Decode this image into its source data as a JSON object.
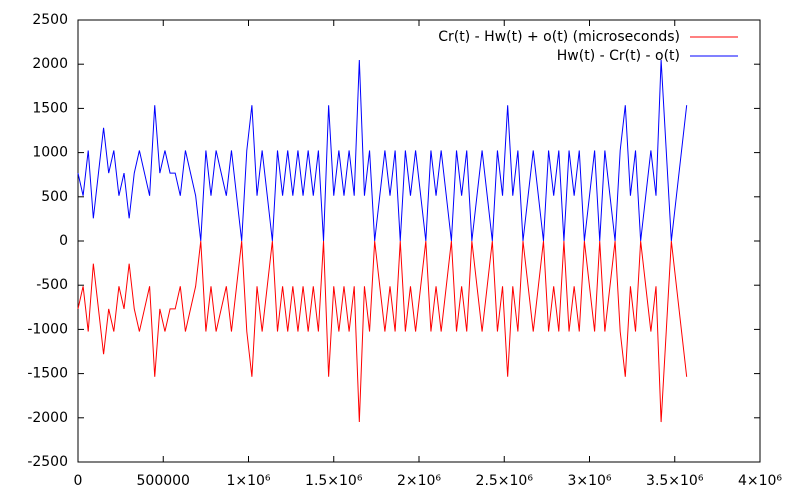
{
  "chart_data": {
    "type": "line",
    "x": [
      0,
      30000,
      60000,
      90000,
      120000,
      150000,
      180000,
      210000,
      240000,
      270000,
      300000,
      330000,
      360000,
      390000,
      420000,
      450000,
      480000,
      510000,
      540000,
      570000,
      600000,
      630000,
      660000,
      690000,
      720000,
      750000,
      780000,
      810000,
      840000,
      870000,
      900000,
      930000,
      960000,
      990000,
      1020000,
      1050000,
      1080000,
      1110000,
      1140000,
      1170000,
      1200000,
      1230000,
      1260000,
      1290000,
      1320000,
      1350000,
      1380000,
      1410000,
      1440000,
      1470000,
      1500000,
      1530000,
      1560000,
      1590000,
      1620000,
      1650000,
      1680000,
      1710000,
      1740000,
      1770000,
      1800000,
      1830000,
      1860000,
      1890000,
      1920000,
      1950000,
      1980000,
      2010000,
      2040000,
      2070000,
      2100000,
      2130000,
      2160000,
      2190000,
      2220000,
      2250000,
      2280000,
      2310000,
      2340000,
      2370000,
      2400000,
      2430000,
      2460000,
      2490000,
      2520000,
      2550000,
      2580000,
      2610000,
      2640000,
      2670000,
      2700000,
      2730000,
      2760000,
      2790000,
      2820000,
      2850000,
      2880000,
      2910000,
      2940000,
      2970000,
      3000000,
      3030000,
      3060000,
      3090000,
      3120000,
      3150000,
      3180000,
      3210000,
      3240000,
      3270000,
      3300000,
      3330000,
      3360000,
      3390000,
      3420000,
      3450000,
      3480000,
      3510000,
      3540000,
      3570000
    ],
    "series": [
      {
        "name": "Cr(t) - Hw(t) + o(t) (microseconds)",
        "color": "#ff0000",
        "values": [
          -768,
          -512,
          -1024,
          -256,
          -768,
          -1280,
          -768,
          -1024,
          -512,
          -768,
          -256,
          -768,
          -1024,
          -768,
          -512,
          -1536,
          -768,
          -1024,
          -768,
          -768,
          -512,
          -1024,
          -768,
          -512,
          0,
          -1024,
          -512,
          -1024,
          -768,
          -512,
          -1024,
          -512,
          0,
          -1024,
          -1536,
          -512,
          -1024,
          -512,
          0,
          -1024,
          -512,
          -1024,
          -512,
          -1024,
          -512,
          -1024,
          -512,
          -1024,
          0,
          -1536,
          -512,
          -1024,
          -512,
          -1024,
          -512,
          -2048,
          -512,
          -1024,
          0,
          -512,
          -1024,
          -512,
          -1024,
          0,
          -1024,
          -512,
          -1024,
          -512,
          0,
          -1024,
          -512,
          -1024,
          -512,
          0,
          -1024,
          -512,
          -1024,
          0,
          -512,
          -1024,
          -512,
          0,
          -1024,
          -512,
          -1536,
          -512,
          -1024,
          0,
          -512,
          -1024,
          -512,
          0,
          -1024,
          -512,
          -1024,
          0,
          -1024,
          -512,
          -1024,
          0,
          -512,
          -1024,
          0,
          -1024,
          -512,
          0,
          -1024,
          -1536,
          -512,
          -1024,
          0,
          -512,
          -1024,
          -512,
          -2048,
          -1024,
          0,
          -512,
          -1024,
          -1536
        ]
      },
      {
        "name": "Hw(t) - Cr(t) - o(t)",
        "color": "#0000ff",
        "values": [
          768,
          512,
          1024,
          256,
          768,
          1280,
          768,
          1024,
          512,
          768,
          256,
          768,
          1024,
          768,
          512,
          1536,
          768,
          1024,
          768,
          768,
          512,
          1024,
          768,
          512,
          0,
          1024,
          512,
          1024,
          768,
          512,
          1024,
          512,
          0,
          1024,
          1536,
          512,
          1024,
          512,
          0,
          1024,
          512,
          1024,
          512,
          1024,
          512,
          1024,
          512,
          1024,
          0,
          1536,
          512,
          1024,
          512,
          1024,
          512,
          2048,
          512,
          1024,
          0,
          512,
          1024,
          512,
          1024,
          0,
          1024,
          512,
          1024,
          512,
          0,
          1024,
          512,
          1024,
          512,
          0,
          1024,
          512,
          1024,
          0,
          512,
          1024,
          512,
          0,
          1024,
          512,
          1536,
          512,
          1024,
          0,
          512,
          1024,
          512,
          0,
          1024,
          512,
          1024,
          0,
          1024,
          512,
          1024,
          0,
          512,
          1024,
          0,
          1024,
          512,
          0,
          1024,
          1536,
          512,
          1024,
          0,
          512,
          1024,
          512,
          2048,
          1024,
          0,
          512,
          1024,
          1536
        ]
      }
    ],
    "xlim": [
      0,
      4000000
    ],
    "xticks": [
      0,
      500000,
      {
        "value": 1000000,
        "label": "1×10⁶"
      },
      {
        "value": 1500000,
        "label": "1.5×10⁶"
      },
      {
        "value": 2000000,
        "label": "2×10⁶"
      },
      {
        "value": 2500000,
        "label": "2.5×10⁶"
      },
      {
        "value": 3000000,
        "label": "3×10⁶"
      },
      {
        "value": 3500000,
        "label": "3.5×10⁶"
      },
      {
        "value": 4000000,
        "label": "4×10⁶"
      }
    ],
    "ylim": [
      -2500,
      2500
    ],
    "yticks": [
      -2500,
      -2000,
      -1500,
      -1000,
      -500,
      0,
      500,
      1000,
      1500,
      2000,
      2500
    ],
    "legend": "upper right"
  }
}
